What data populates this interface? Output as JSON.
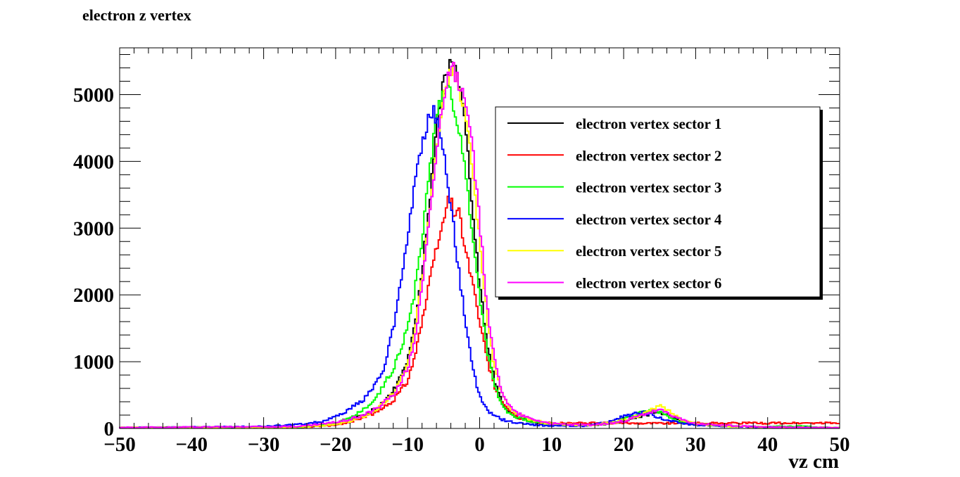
{
  "chart_data": {
    "type": "line",
    "title": "electron z vertex",
    "xlabel": "vz cm",
    "ylabel": "",
    "xlim": [
      -50,
      50
    ],
    "ylim": [
      0,
      5700
    ],
    "x_ticks": [
      -50,
      -40,
      -30,
      -20,
      -10,
      0,
      10,
      20,
      30,
      40,
      50
    ],
    "x_tick_labels": [
      "−50",
      "−40",
      "−30",
      "−20",
      "−10",
      "0",
      "10",
      "20",
      "30",
      "40",
      "50"
    ],
    "y_ticks": [
      0,
      1000,
      2000,
      3000,
      4000,
      5000
    ],
    "y_tick_labels": [
      "0",
      "1000",
      "2000",
      "3000",
      "4000",
      "5000"
    ],
    "legend_position": "top-right",
    "series": [
      {
        "name": "electron vertex sector 1",
        "color": "#000000",
        "x": [
          -50,
          -25,
          -20,
          -18,
          -16,
          -14,
          -12,
          -10,
          -9,
          -8,
          -7,
          -6,
          -5,
          -4,
          -3.5,
          -3,
          -2,
          -1,
          0,
          1,
          2,
          3,
          4,
          5,
          7,
          10,
          15,
          18,
          20,
          22,
          24,
          25,
          26,
          28,
          30,
          35,
          40,
          50
        ],
        "y": [
          15,
          20,
          60,
          120,
          200,
          320,
          550,
          1000,
          1550,
          2350,
          3350,
          4450,
          5200,
          5500,
          5550,
          5300,
          4550,
          3350,
          2150,
          1300,
          750,
          420,
          260,
          180,
          110,
          60,
          50,
          70,
          110,
          170,
          230,
          240,
          200,
          110,
          60,
          30,
          20,
          10
        ]
      },
      {
        "name": "electron vertex sector 2",
        "color": "#ff0000",
        "x": [
          -50,
          -25,
          -20,
          -18,
          -16,
          -14,
          -12,
          -10,
          -9,
          -8,
          -7,
          -6,
          -5,
          -4.5,
          -4,
          -3.5,
          -3,
          -2.5,
          -2,
          -1,
          0,
          1,
          2,
          3,
          5,
          8
        ],
        "y": [
          10,
          15,
          50,
          100,
          170,
          260,
          420,
          720,
          1100,
          1600,
          2150,
          2700,
          3100,
          3400,
          3450,
          3200,
          3350,
          3000,
          2700,
          2200,
          1600,
          1050,
          650,
          380,
          180,
          80
        ]
      },
      {
        "name": "electron vertex sector 3",
        "color": "#00ff00",
        "x": [
          -50,
          -25,
          -20,
          -18,
          -16,
          -14,
          -12,
          -10,
          -9,
          -8,
          -7,
          -6,
          -5,
          -4.5,
          -4,
          -3,
          -2,
          -1,
          0,
          1,
          2,
          3,
          4,
          5,
          7,
          10,
          15,
          18,
          20,
          22,
          24,
          25,
          26,
          28,
          30,
          35,
          40,
          44,
          50
        ],
        "y": [
          15,
          20,
          80,
          160,
          290,
          520,
          900,
          1500,
          2050,
          2850,
          3850,
          4650,
          5100,
          5150,
          5050,
          4550,
          3850,
          2950,
          2000,
          1200,
          680,
          380,
          240,
          170,
          110,
          60,
          50,
          80,
          140,
          230,
          280,
          250,
          180,
          100,
          60,
          30,
          25,
          35,
          10
        ]
      },
      {
        "name": "electron vertex sector 4",
        "color": "#0000ff",
        "x": [
          -50,
          -30,
          -25,
          -22,
          -20,
          -18,
          -16,
          -14,
          -13,
          -12,
          -11,
          -10,
          -9,
          -8,
          -7,
          -6.5,
          -6,
          -5,
          -4,
          -3,
          -2,
          -1,
          0,
          1,
          2,
          3,
          5,
          8,
          10,
          15,
          18,
          20,
          22,
          23,
          24,
          25,
          26,
          28,
          30,
          35,
          40,
          50
        ],
        "y": [
          10,
          30,
          60,
          100,
          170,
          290,
          450,
          730,
          1000,
          1500,
          2150,
          2900,
          3650,
          4300,
          4680,
          4750,
          4650,
          4150,
          3350,
          2450,
          1600,
          900,
          480,
          280,
          200,
          140,
          80,
          50,
          40,
          40,
          100,
          180,
          230,
          240,
          210,
          160,
          120,
          80,
          50,
          30,
          20,
          10
        ]
      },
      {
        "name": "electron vertex sector 5",
        "color": "#ffff00",
        "x": [
          -50,
          -25,
          -20,
          -18,
          -16,
          -14,
          -12,
          -10,
          -9,
          -8,
          -7,
          -6,
          -5,
          -4,
          -3.5,
          -3,
          -2.5,
          -2,
          -1,
          0,
          1,
          2,
          3,
          4,
          5,
          7,
          10,
          15,
          18,
          20,
          22,
          24,
          25,
          26,
          28,
          30,
          35,
          40,
          50
        ],
        "y": [
          15,
          20,
          60,
          110,
          190,
          310,
          520,
          950,
          1450,
          2250,
          3250,
          4250,
          5050,
          5400,
          5350,
          5150,
          4900,
          4700,
          3900,
          2800,
          1700,
          950,
          560,
          330,
          220,
          130,
          70,
          50,
          80,
          120,
          190,
          280,
          340,
          280,
          140,
          70,
          30,
          20,
          10
        ]
      },
      {
        "name": "electron vertex sector 6",
        "color": "#ff00ff",
        "x": [
          -50,
          -25,
          -20,
          -18,
          -16,
          -14,
          -12,
          -10,
          -9,
          -8,
          -7,
          -6,
          -5,
          -4,
          -3.5,
          -3,
          -2.5,
          -2,
          -1,
          0,
          1,
          2,
          3,
          4,
          5,
          7,
          10,
          15,
          18,
          20,
          22,
          24,
          25,
          26,
          28,
          30,
          35,
          40,
          50
        ],
        "y": [
          15,
          30,
          90,
          140,
          210,
          320,
          500,
          900,
          1350,
          2100,
          3100,
          4150,
          5000,
          5450,
          5350,
          5200,
          5050,
          4900,
          4200,
          3100,
          1900,
          1050,
          600,
          360,
          240,
          150,
          70,
          50,
          70,
          110,
          180,
          250,
          270,
          240,
          130,
          70,
          40,
          20,
          10
        ]
      }
    ]
  }
}
